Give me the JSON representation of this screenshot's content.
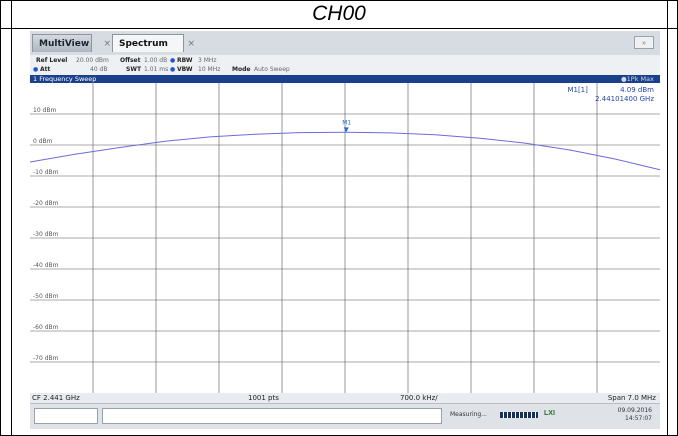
{
  "page_title": "CH00",
  "tabs": [
    {
      "label": "MultiView"
    },
    {
      "label": "Spectrum"
    }
  ],
  "settings": {
    "ref_level_key": "Ref Level",
    "ref_level_val": "20.00 dBm",
    "att_key": "Att",
    "att_val": "40 dB",
    "offset_key": "Offset",
    "offset_val": "1.00 dB",
    "swt_key": "SWT",
    "swt_val": "1.01 ms",
    "rbw_key": "RBW",
    "rbw_val": "3 MHz",
    "vbw_key": "VBW",
    "vbw_val": "10 MHz",
    "mode_key": "Mode",
    "mode_val": "Auto Sweep"
  },
  "sweep_bar": {
    "label": "1 Frequency Sweep",
    "right": "●1Pk Max"
  },
  "marker_table": {
    "name": "M1[1]",
    "level": "4.09 dBm",
    "freq": "2.44101400 GHz"
  },
  "marker_label": "M1",
  "y_axis_labels": [
    "10 dBm",
    "0 dBm",
    "-10 dBm",
    "-20 dBm",
    "-30 dBm",
    "-40 dBm",
    "-50 dBm",
    "-60 dBm",
    "-70 dBm"
  ],
  "bottom_bar": {
    "cf": "CF 2.441 GHz",
    "pts": "1001 pts",
    "div": "700.0 kHz/",
    "span": "Span 7.0 MHz"
  },
  "status": {
    "measuring": "Measuring...",
    "lxi": "LXI",
    "date": "09.09.2016",
    "time": "14:57:07"
  },
  "colors": {
    "trace": "#6b6bde",
    "marker": "#1e6fd6",
    "sweep_bar": "#1a3f8c"
  },
  "chart_data": {
    "type": "line",
    "x_unit": "MHz offset from CF",
    "xlim": [
      -3.5,
      3.5
    ],
    "ylim": [
      -80,
      20
    ],
    "series": [
      {
        "x": [
          -3.5,
          -3.0,
          -2.5,
          -2.0,
          -1.5,
          -1.0,
          -0.5,
          0.0,
          0.5,
          1.0,
          1.5,
          2.0,
          2.5,
          3.0,
          3.5
        ],
        "values": [
          -5.5,
          -3.0,
          -0.8,
          1.2,
          2.6,
          3.5,
          4.0,
          4.09,
          3.9,
          3.3,
          2.2,
          0.6,
          -1.6,
          -4.5,
          -8.0
        ]
      }
    ],
    "marker": {
      "x": 0.014,
      "y": 4.09
    }
  }
}
